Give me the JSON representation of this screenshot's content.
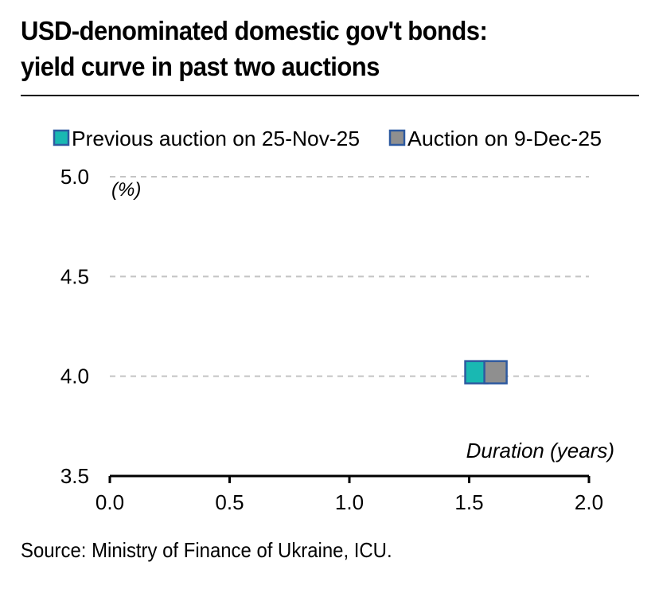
{
  "title_lines": [
    "USD-denominated domestic gov't bonds:",
    "yield curve in past two auctions"
  ],
  "source": "Source: Ministry of Finance of Ukraine, ICU.",
  "chart_data": {
    "type": "scatter",
    "title": "USD-denominated domestic gov't bonds: yield curve in past two auctions",
    "xlabel": "Duration (years)",
    "ylabel": "(%)",
    "xlim": [
      0.0,
      2.0
    ],
    "ylim": [
      3.5,
      5.0
    ],
    "x_ticks": [
      "0.0",
      "0.5",
      "1.0",
      "1.5",
      "2.0"
    ],
    "y_ticks": [
      "3.5",
      "4.0",
      "4.5",
      "5.0"
    ],
    "grid": "horizontal-dashed",
    "legend_position": "top",
    "series": [
      {
        "name": "Previous auction on 25-Nov-25",
        "color": "#19b8b2",
        "edge": "#2e5aa0",
        "points": [
          {
            "x": 1.53,
            "y": 4.02
          }
        ]
      },
      {
        "name": "Auction on 9-Dec-25",
        "color": "#8f8f8f",
        "edge": "#2e5aa0",
        "points": [
          {
            "x": 1.61,
            "y": 4.02
          }
        ]
      }
    ]
  }
}
